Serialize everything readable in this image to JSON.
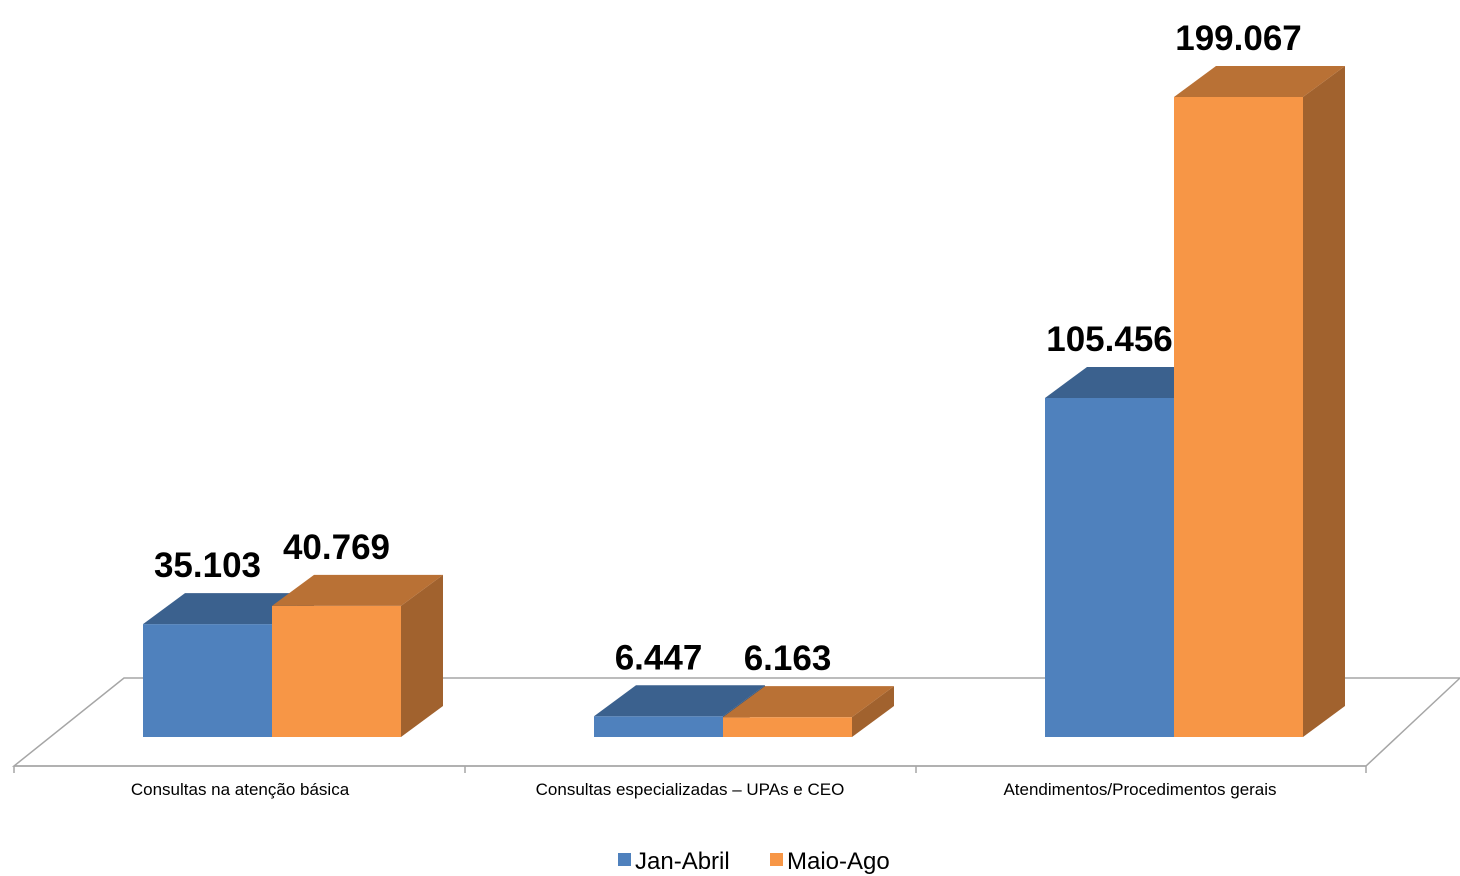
{
  "chart_data": {
    "type": "bar",
    "categories": [
      "Consultas na atenção básica",
      "Consultas especializadas – UPAs e CEO",
      "Atendimentos/Procedimentos gerais"
    ],
    "series": [
      {
        "name": "Jan-Abril",
        "values": [
          35103,
          6447,
          105456
        ],
        "value_labels": [
          "35.103",
          "6.447",
          "105.456"
        ],
        "color": "#4F81BD"
      },
      {
        "name": "Maio-Ago",
        "values": [
          40769,
          6163,
          199067
        ],
        "value_labels": [
          "40.769",
          "6.163",
          "199.067"
        ],
        "color": "#F79646"
      }
    ],
    "three_d": true,
    "grid": false,
    "legend_position": "bottom"
  }
}
